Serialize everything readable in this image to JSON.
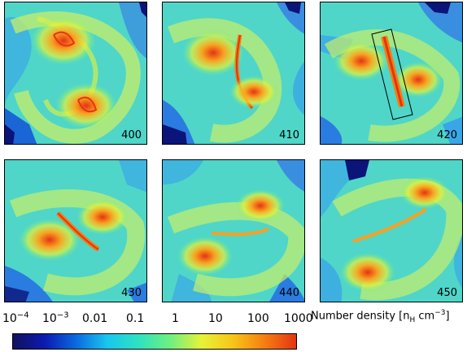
{
  "panels": [
    {
      "label": "400"
    },
    {
      "label": "410"
    },
    {
      "label": "420"
    },
    {
      "label": "430"
    },
    {
      "label": "440"
    },
    {
      "label": "450"
    }
  ],
  "colorbar": {
    "ticks": [
      {
        "base": "10",
        "exp": "−4"
      },
      {
        "base": "10",
        "exp": "−3"
      },
      {
        "text": "0.01"
      },
      {
        "text": "0.1"
      },
      {
        "text": "1"
      },
      {
        "text": "10"
      },
      {
        "text": "100"
      },
      {
        "text": "1000"
      }
    ],
    "title": {
      "prefix": "Number density [n",
      "sub": "H",
      "mid": " cm",
      "sup": "−3",
      "suffix": "]"
    },
    "colors": [
      "#12125e",
      "#0c1ab0",
      "#0a6ae0",
      "#19c6ee",
      "#2fe2c0",
      "#6ff080",
      "#e8f238",
      "#f8c418",
      "#f47e10",
      "#e43414"
    ]
  },
  "colors": {
    "background_field": "#4fd6c8",
    "low_density_void": "#2a6cd8",
    "deep_void": "#0b1478",
    "filament": "#d9f07a",
    "dense_core": "#e84a1a"
  }
}
